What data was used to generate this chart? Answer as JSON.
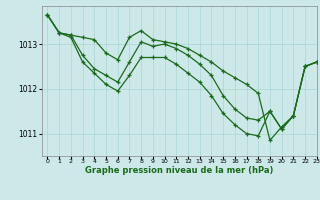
{
  "title": "Graphe pression niveau de la mer (hPa)",
  "bg_color": "#cce8e8",
  "grid_color": "#aad4d4",
  "line_color": "#1a6b1a",
  "xlim": [
    -0.5,
    23
  ],
  "ylim": [
    1010.5,
    1013.85
  ],
  "yticks": [
    1011,
    1012,
    1013
  ],
  "xticks": [
    0,
    1,
    2,
    3,
    4,
    5,
    6,
    7,
    8,
    9,
    10,
    11,
    12,
    13,
    14,
    15,
    16,
    17,
    18,
    19,
    20,
    21,
    22,
    23
  ],
  "series": [
    [
      1013.65,
      1013.25,
      1013.2,
      1013.15,
      1013.1,
      1012.8,
      1012.65,
      1013.15,
      1013.3,
      1013.1,
      1013.05,
      1013.0,
      1012.9,
      1012.75,
      1012.6,
      1012.4,
      1012.25,
      1012.1,
      1011.9,
      1010.85,
      1011.15,
      1011.4,
      1012.5,
      1012.6
    ],
    [
      1013.65,
      1013.25,
      1013.2,
      1012.75,
      1012.45,
      1012.3,
      1012.15,
      1012.6,
      1013.05,
      1012.95,
      1013.0,
      1012.9,
      1012.75,
      1012.55,
      1012.3,
      1011.85,
      1011.55,
      1011.35,
      1011.3,
      1011.5,
      1011.1,
      1011.4,
      1012.5,
      1012.6
    ],
    [
      1013.65,
      1013.25,
      1013.15,
      1012.6,
      1012.35,
      1012.1,
      1011.95,
      1012.3,
      1012.7,
      1012.7,
      1012.7,
      1012.55,
      1012.35,
      1012.15,
      1011.85,
      1011.45,
      1011.2,
      1011.0,
      1010.95,
      1011.5,
      1011.1,
      1011.4,
      1012.5,
      1012.6
    ]
  ]
}
